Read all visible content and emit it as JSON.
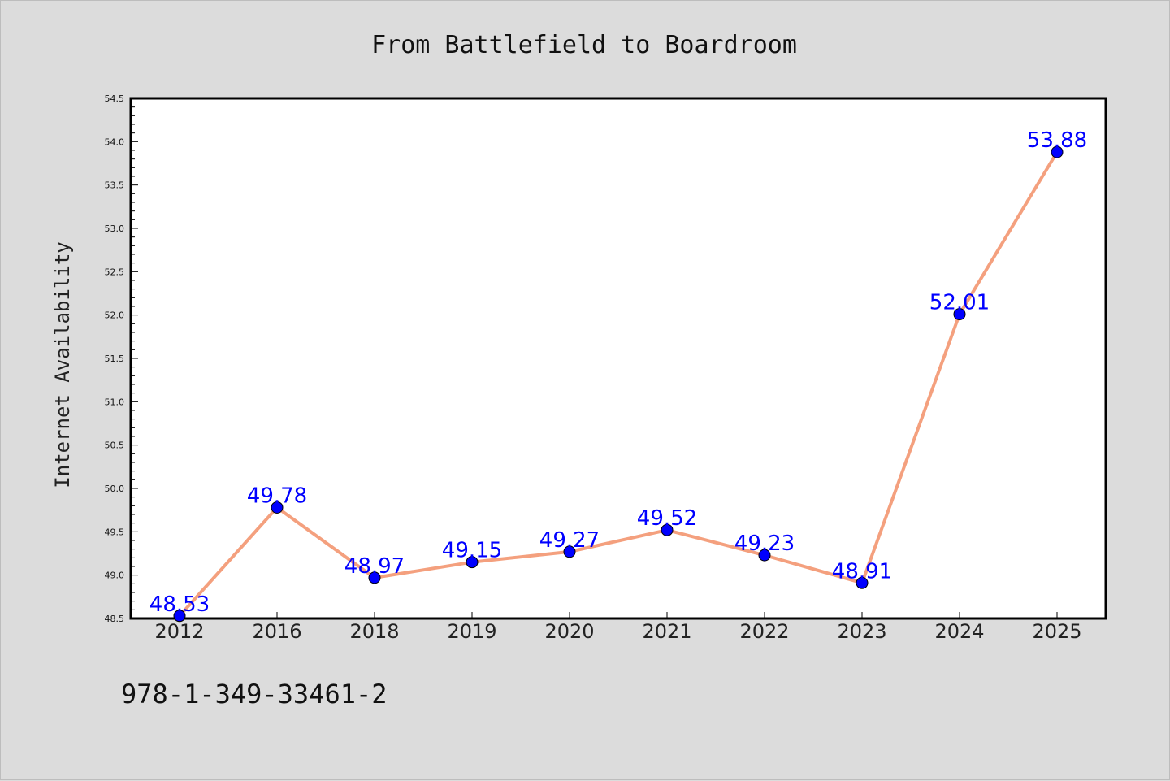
{
  "chart_data": {
    "type": "line",
    "title": "From Battlefield to Boardroom",
    "xlabel": "",
    "ylabel": "Internet Availability",
    "categories": [
      "2012",
      "2016",
      "2018",
      "2019",
      "2020",
      "2021",
      "2022",
      "2023",
      "2024",
      "2025"
    ],
    "series": [
      {
        "values": [
          48.53,
          49.78,
          48.97,
          49.15,
          49.27,
          49.52,
          49.23,
          48.91,
          52.01,
          53.88
        ],
        "data_labels": [
          "48.53",
          "49.78",
          "48.97",
          "49.15",
          "49.27",
          "49.52",
          "49.23",
          "48.91",
          "52.01",
          "53.88"
        ],
        "line_color": "#f4a07e",
        "marker_color": "#0000ff"
      }
    ],
    "ylim": [
      48.5,
      54.5
    ],
    "y_ticks": [
      "48.5",
      "49.0",
      "49.5",
      "50.0",
      "50.5",
      "51.0",
      "51.5",
      "52.0",
      "52.5",
      "53.0",
      "53.5",
      "54.0",
      "54.5"
    ],
    "grid": false,
    "legend": "none"
  },
  "footer": {
    "code": "978-1-349-33461-2"
  },
  "colors": {
    "background": "#dcdcdc",
    "plot_background": "#ffffff",
    "line": "#f4a07e",
    "marker": "#0000ff",
    "data_label": "#0000ff"
  }
}
